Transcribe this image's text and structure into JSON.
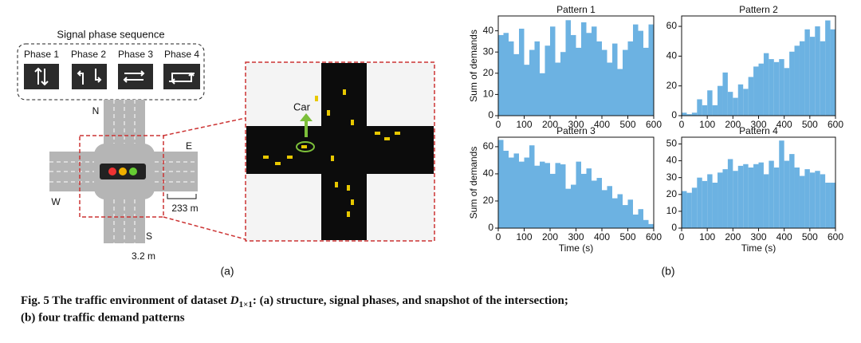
{
  "diagram": {
    "phase_title": "Signal phase sequence",
    "phases": [
      "Phase 1",
      "Phase 2",
      "Phase 3",
      "Phase 4"
    ],
    "directions": {
      "north": "N",
      "east": "E",
      "west": "W",
      "south": "S"
    },
    "road_length": "233 m",
    "lane_width": "3.2 m",
    "car_label": "Car",
    "panel_label": "(a)"
  },
  "panel_b_label": "(b)",
  "caption": {
    "prefix": "Fig. 5  The traffic environment of dataset ",
    "symbol": "D",
    "subscript": "1×1",
    "rest": ": (a) structure, signal phases, and snapshot of the intersection;",
    "line2": "(b) four traffic demand patterns"
  },
  "chart_data": [
    {
      "type": "histogram",
      "title": "Pattern 1",
      "y_label": "Sum of demands",
      "color": "#6cb2e2",
      "bins": [
        0,
        20,
        40,
        60,
        80,
        100,
        120,
        140,
        160,
        180,
        200,
        220,
        240,
        260,
        280,
        300,
        320,
        340,
        360,
        380,
        400,
        420,
        440,
        460,
        480,
        500,
        520,
        540,
        560,
        580,
        600
      ],
      "values": [
        38,
        39,
        35,
        29,
        41,
        24,
        31,
        35,
        20,
        33,
        42,
        25,
        30,
        45,
        38,
        32,
        44,
        39,
        42,
        35,
        31,
        25,
        34,
        22,
        31,
        35,
        43,
        40,
        32,
        43
      ],
      "xlim": [
        0,
        600
      ],
      "xticks": [
        0,
        100,
        200,
        300,
        400,
        500,
        600
      ],
      "ylim": [
        0,
        47
      ],
      "yticks": [
        0,
        10,
        20,
        30,
        40
      ]
    },
    {
      "type": "histogram",
      "title": "Pattern 2",
      "color": "#6cb2e2",
      "bins": [
        0,
        20,
        40,
        60,
        80,
        100,
        120,
        140,
        160,
        180,
        200,
        220,
        240,
        260,
        280,
        300,
        320,
        340,
        360,
        380,
        400,
        420,
        440,
        460,
        480,
        500,
        520,
        540,
        560,
        580,
        600
      ],
      "values": [
        2,
        1,
        2,
        11,
        7,
        17,
        7,
        20,
        29,
        16,
        12,
        21,
        18,
        26,
        33,
        35,
        42,
        38,
        36,
        38,
        32,
        43,
        47,
        50,
        58,
        53,
        60,
        50,
        64,
        58
      ],
      "xlim": [
        0,
        600
      ],
      "xticks": [
        0,
        100,
        200,
        300,
        400,
        500,
        600
      ],
      "ylim": [
        0,
        67
      ],
      "yticks": [
        0,
        20,
        40,
        60
      ]
    },
    {
      "type": "histogram",
      "title": "Pattern 3",
      "y_label": "Sum of demands",
      "x_label": "Time (s)",
      "color": "#6cb2e2",
      "bins": [
        0,
        20,
        40,
        60,
        80,
        100,
        120,
        140,
        160,
        180,
        200,
        220,
        240,
        260,
        280,
        300,
        320,
        340,
        360,
        380,
        400,
        420,
        440,
        460,
        480,
        500,
        520,
        540,
        560,
        580,
        600
      ],
      "values": [
        65,
        57,
        52,
        55,
        49,
        52,
        61,
        46,
        49,
        48,
        40,
        48,
        47,
        29,
        32,
        49,
        40,
        44,
        35,
        37,
        28,
        31,
        22,
        25,
        17,
        21,
        10,
        14,
        6,
        3
      ],
      "xlim": [
        0,
        600
      ],
      "xticks": [
        0,
        100,
        200,
        300,
        400,
        500,
        600
      ],
      "ylim": [
        0,
        67
      ],
      "yticks": [
        0,
        20,
        40,
        60
      ]
    },
    {
      "type": "histogram",
      "title": "Pattern 4",
      "x_label": "Time (s)",
      "color": "#6cb2e2",
      "bins": [
        0,
        20,
        40,
        60,
        80,
        100,
        120,
        140,
        160,
        180,
        200,
        220,
        240,
        260,
        280,
        300,
        320,
        340,
        360,
        380,
        400,
        420,
        440,
        460,
        480,
        500,
        520,
        540,
        560,
        580,
        600
      ],
      "values": [
        22,
        21,
        24,
        30,
        28,
        32,
        27,
        33,
        35,
        41,
        34,
        37,
        38,
        36,
        38,
        39,
        32,
        40,
        36,
        52,
        40,
        44,
        36,
        31,
        35,
        33,
        34,
        32,
        27,
        27
      ],
      "xlim": [
        0,
        600
      ],
      "xticks": [
        0,
        100,
        200,
        300,
        400,
        500,
        600
      ],
      "ylim": [
        0,
        54
      ],
      "yticks": [
        0,
        10,
        20,
        30,
        40,
        50
      ]
    }
  ]
}
